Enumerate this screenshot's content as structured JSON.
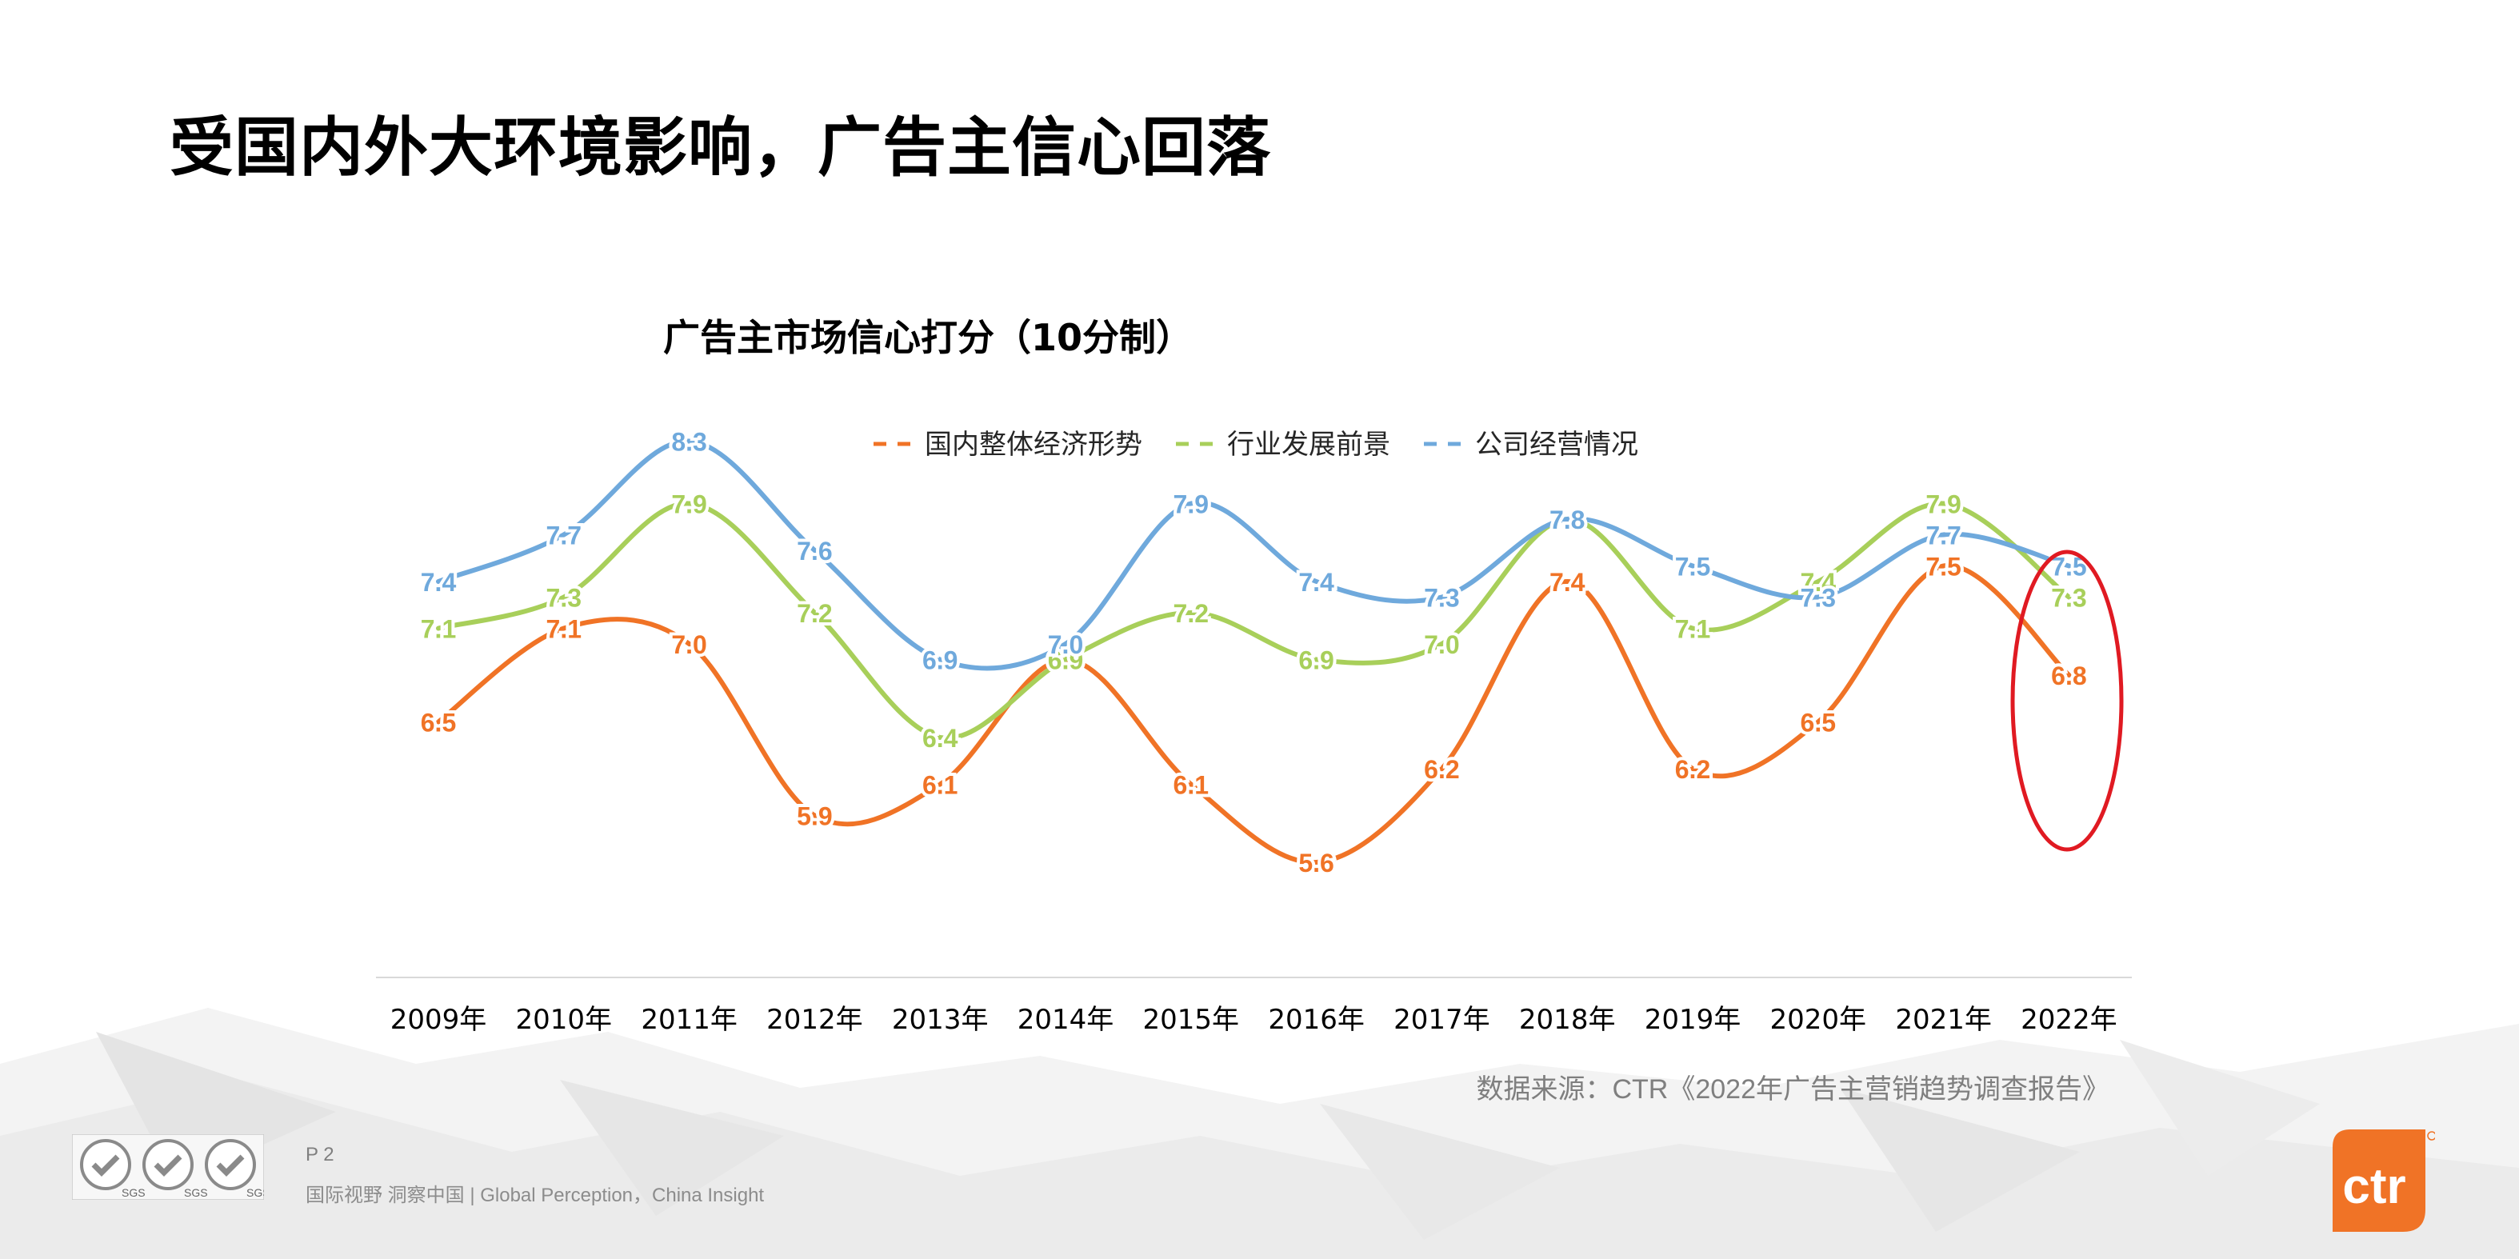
{
  "page_title": "受国内外大环境影响，广告主信心回落",
  "source": "数据来源：CTR《2022年广告主营销趋势调查报告》",
  "page_number": "P 2",
  "footer_tagline": "国际视野  洞察中国 |  Global Perception，China Insight",
  "logo_text": "ctr",
  "seal_text": "SGS",
  "colors": {
    "economy": "#F07326",
    "industry": "#A8CF5A",
    "company": "#6FA9DC",
    "highlight": "#E01A22",
    "logo": "#F07326"
  },
  "chart_data": {
    "type": "line",
    "title": "广告主市场信心打分（10分制）",
    "legend_position": "top-center",
    "grid": false,
    "categories": [
      "2009年",
      "2010年",
      "2011年",
      "2012年",
      "2013年",
      "2014年",
      "2015年",
      "2016年",
      "2017年",
      "2018年",
      "2019年",
      "2020年",
      "2021年",
      "2022年"
    ],
    "series": [
      {
        "name": "国内整体经济形势",
        "color": "#F07326",
        "values": [
          6.5,
          7.1,
          7.0,
          5.9,
          6.1,
          6.9,
          6.1,
          5.6,
          6.2,
          7.4,
          6.2,
          6.5,
          7.5,
          6.8
        ],
        "labels": [
          "6.5",
          "7.1",
          "7.0",
          "5.9",
          "6.1",
          "",
          "6.1",
          "5.6",
          "6.2",
          "7.4",
          "6.2",
          "6.5",
          "7.5",
          "6.8"
        ]
      },
      {
        "name": "行业发展前景",
        "color": "#A8CF5A",
        "values": [
          7.1,
          7.3,
          7.9,
          7.2,
          6.4,
          6.9,
          7.2,
          6.9,
          7.0,
          7.8,
          7.1,
          7.4,
          7.9,
          7.3
        ],
        "labels": [
          "7.1",
          "7.3",
          "7.9",
          "7.2",
          "6.4",
          "6.9",
          "7.2",
          "6.9",
          "7.0",
          "7.8",
          "7.1",
          "7.4",
          "7.9",
          "7.3"
        ]
      },
      {
        "name": "公司经营情况",
        "color": "#6FA9DC",
        "values": [
          7.4,
          7.7,
          8.3,
          7.6,
          6.9,
          7.0,
          7.9,
          7.4,
          7.3,
          7.8,
          7.5,
          7.3,
          7.7,
          7.5
        ],
        "labels": [
          "7.4",
          "7.7",
          "8.3",
          "7.6",
          "6.9",
          "7.0",
          "7.9",
          "7.4",
          "7.3",
          "7.8",
          "7.5",
          "7.3",
          "7.7",
          "7.5"
        ]
      }
    ],
    "highlight_category": "2022年"
  }
}
